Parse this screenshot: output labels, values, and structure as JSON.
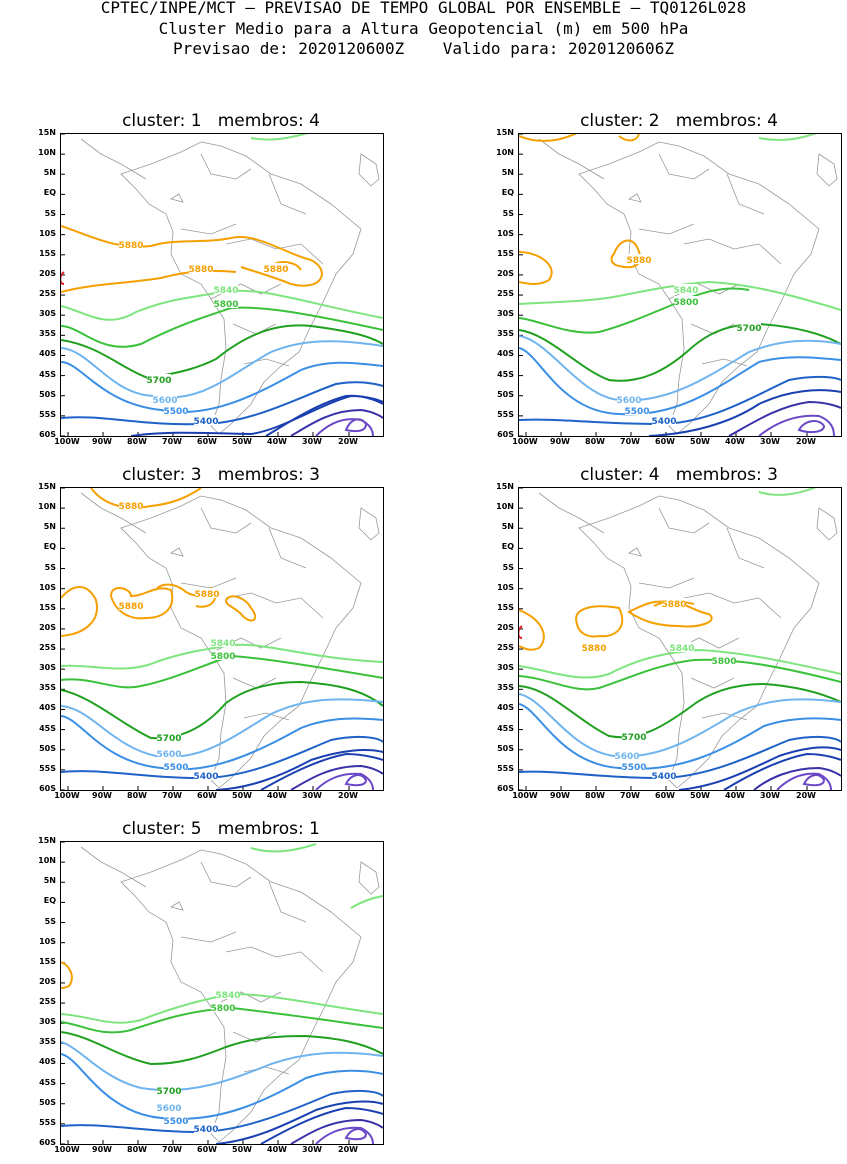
{
  "header": {
    "line1": "CPTEC/INPE/MCT – PREVISAO DE TEMPO GLOBAL POR ENSEMBLE – TQ0126L028",
    "line2": "Cluster Medio para a Altura Geopotencial (m) em 500 hPa",
    "line3": "Previsao de: 2020120600Z    Valido para: 2020120606Z"
  },
  "axes": {
    "lat_labels": [
      "15N",
      "10N",
      "5N",
      "EQ",
      "5S",
      "10S",
      "15S",
      "20S",
      "25S",
      "30S",
      "35S",
      "40S",
      "45S",
      "50S",
      "55S",
      "60S"
    ],
    "lon_labels": [
      "100W",
      "90W",
      "80W",
      "70W",
      "60W",
      "50W",
      "40W",
      "30W",
      "20W"
    ]
  },
  "colors": {
    "c5880": "#f5a000",
    "c5840": "#7ee57e",
    "c5800": "#3ac13a",
    "c5700": "#1fa01f",
    "c5600": "#6fb4ee",
    "c5500": "#3a8ee6",
    "c5400": "#1e62c8",
    "c_low1": "#1a3fb0",
    "c_low2": "#3a30a8",
    "c_low3": "#6b48c8",
    "c_high": "#e02020",
    "land": "#999999"
  },
  "panels": [
    {
      "title": "cluster: 1   membros: 4",
      "labels": [
        {
          "text": "5880",
          "c": "c5880"
        },
        {
          "text": "5880",
          "c": "c5880"
        },
        {
          "text": "5880",
          "c": "c5880"
        },
        {
          "text": "5840",
          "c": "c5840"
        },
        {
          "text": "5800",
          "c": "c5800"
        },
        {
          "text": "5700",
          "c": "c5700"
        },
        {
          "text": "5600",
          "c": "c5600"
        },
        {
          "text": "5500",
          "c": "c5500"
        },
        {
          "text": "5400",
          "c": "c5400"
        }
      ]
    },
    {
      "title": "cluster: 2   membros: 4",
      "labels": [
        {
          "text": "5880",
          "c": "c5880"
        },
        {
          "text": "5840",
          "c": "c5840"
        },
        {
          "text": "5800",
          "c": "c5800"
        },
        {
          "text": "5700",
          "c": "c5700"
        },
        {
          "text": "5600",
          "c": "c5600"
        },
        {
          "text": "5500",
          "c": "c5500"
        },
        {
          "text": "5400",
          "c": "c5400"
        }
      ]
    },
    {
      "title": "cluster: 3   membros: 3",
      "labels": [
        {
          "text": "5880",
          "c": "c5880"
        },
        {
          "text": "5880",
          "c": "c5880"
        },
        {
          "text": "5880",
          "c": "c5880"
        },
        {
          "text": "5840",
          "c": "c5840"
        },
        {
          "text": "5800",
          "c": "c5800"
        },
        {
          "text": "5700",
          "c": "c5700"
        },
        {
          "text": "5600",
          "c": "c5600"
        },
        {
          "text": "5500",
          "c": "c5500"
        },
        {
          "text": "5400",
          "c": "c5400"
        }
      ]
    },
    {
      "title": "cluster: 4   membros: 3",
      "labels": [
        {
          "text": "5880",
          "c": "c5880"
        },
        {
          "text": "5880",
          "c": "c5880"
        },
        {
          "text": "5840",
          "c": "c5840"
        },
        {
          "text": "5800",
          "c": "c5800"
        },
        {
          "text": "5700",
          "c": "c5700"
        },
        {
          "text": "5600",
          "c": "c5600"
        },
        {
          "text": "5500",
          "c": "c5500"
        },
        {
          "text": "5400",
          "c": "c5400"
        }
      ]
    },
    {
      "title": "cluster: 5   membros: 1",
      "labels": [
        {
          "text": "5840",
          "c": "c5840"
        },
        {
          "text": "5800",
          "c": "c5800"
        },
        {
          "text": "5700",
          "c": "c5700"
        },
        {
          "text": "5600",
          "c": "c5600"
        },
        {
          "text": "5500",
          "c": "c5500"
        },
        {
          "text": "5400",
          "c": "c5400"
        }
      ]
    }
  ]
}
